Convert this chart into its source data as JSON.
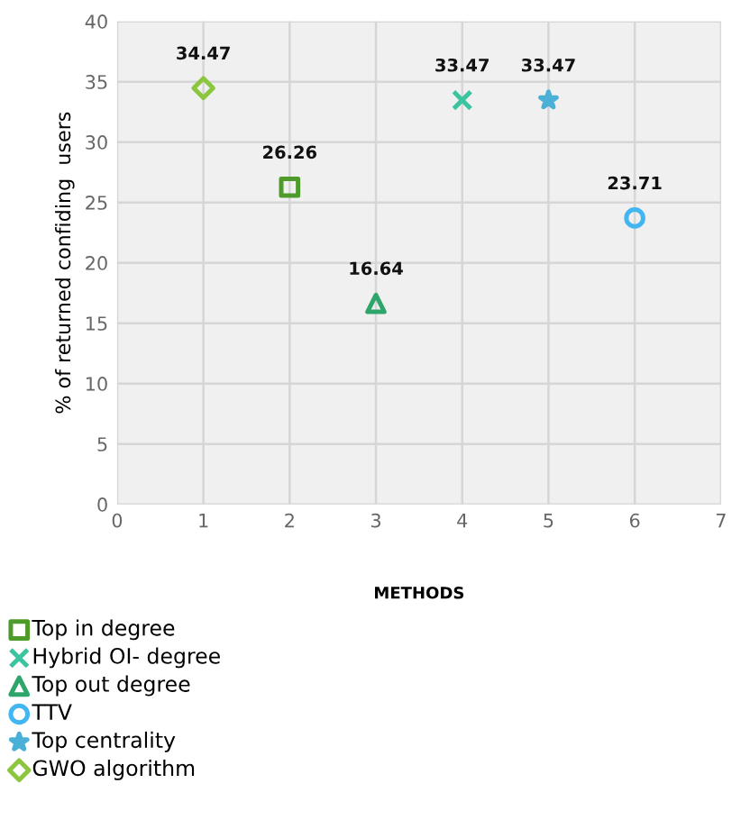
{
  "chart_data": {
    "type": "scatter",
    "xlabel": "METHODS",
    "ylabel": "% of returned confiding  users",
    "xlim": [
      0,
      7
    ],
    "xticks": [
      0,
      1,
      2,
      3,
      4,
      5,
      6,
      7
    ],
    "ylim": [
      0,
      40
    ],
    "yticks": [
      0,
      5,
      10,
      15,
      20,
      25,
      30,
      35,
      40
    ],
    "grid": true,
    "legend": "bottom left",
    "data_labels": true,
    "series": [
      {
        "name": "Top in degree",
        "color": "#4e9a2a",
        "marker": "square",
        "x": [
          2
        ],
        "values": [
          26.26
        ]
      },
      {
        "name": "Hybrid OI- degree",
        "color": "#3cc4a0",
        "marker": "cross",
        "x": [
          4
        ],
        "values": [
          33.47
        ]
      },
      {
        "name": "Top out degree",
        "color": "#2ea56b",
        "marker": "triangle",
        "x": [
          3
        ],
        "values": [
          16.64
        ]
      },
      {
        "name": "TTV",
        "color": "#41b6f0",
        "marker": "circle",
        "x": [
          6
        ],
        "values": [
          23.71
        ]
      },
      {
        "name": "Top centrality",
        "color": "#4ab0d8",
        "marker": "star",
        "x": [
          5
        ],
        "values": [
          33.47
        ]
      },
      {
        "name": "GWO algorithm",
        "color": "#8cc63f",
        "marker": "diamond",
        "x": [
          1
        ],
        "values": [
          34.47
        ]
      }
    ]
  }
}
